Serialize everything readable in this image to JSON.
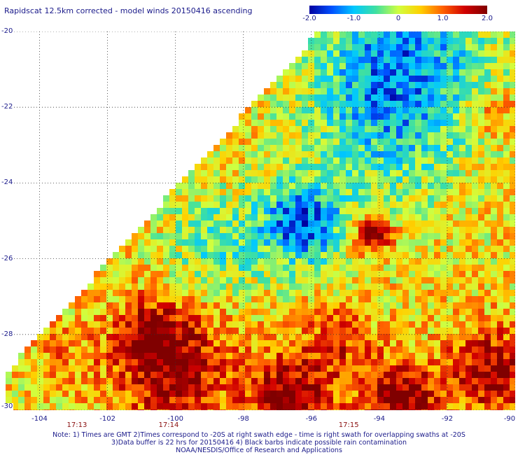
{
  "title": "Rapidscat 12.5km corrected - model winds 20150416 ascending",
  "colorbar": {
    "ticks": [
      "-2.0",
      "-1.0",
      "0",
      "1.0",
      "2.0"
    ],
    "tick_values": [
      -2,
      -1,
      0,
      1,
      2
    ],
    "colors": [
      "#0000a0",
      "#0050ff",
      "#00c8ff",
      "#40e0a0",
      "#d0ff40",
      "#ffd000",
      "#ff6000",
      "#d00000",
      "#800000"
    ]
  },
  "map": {
    "lon_ticks": [
      "-104",
      "-102",
      "-100",
      "-98",
      "-96",
      "-94",
      "-92",
      "-90"
    ],
    "lon_values": [
      -104,
      -102,
      -100,
      -98,
      -96,
      -94,
      -92,
      -90
    ],
    "lat_ticks": [
      "-20",
      "-22",
      "-24",
      "-26",
      "-28",
      "-30"
    ],
    "lat_values": [
      -20,
      -22,
      -24,
      -26,
      -28,
      -30
    ],
    "lon_range": [
      -105,
      -90
    ],
    "lat_range": [
      -30,
      -20
    ],
    "grid": "dotted"
  },
  "times": [
    {
      "label": "17:13",
      "lon": -102.9
    },
    {
      "label": "17:14",
      "lon": -100.2
    },
    {
      "label": "17:15",
      "lon": -94.9
    }
  ],
  "notes": [
    "Note: 1) Times are GMT 2)Times correspond to -20S at right swath edge - time is right swath for overlapping swaths at -20S",
    "3)Data buffer is 22 hrs for 20150416 4) Black barbs indicate possible rain contamination",
    "NOAA/NESDIS/Office of Research and Applications"
  ]
}
